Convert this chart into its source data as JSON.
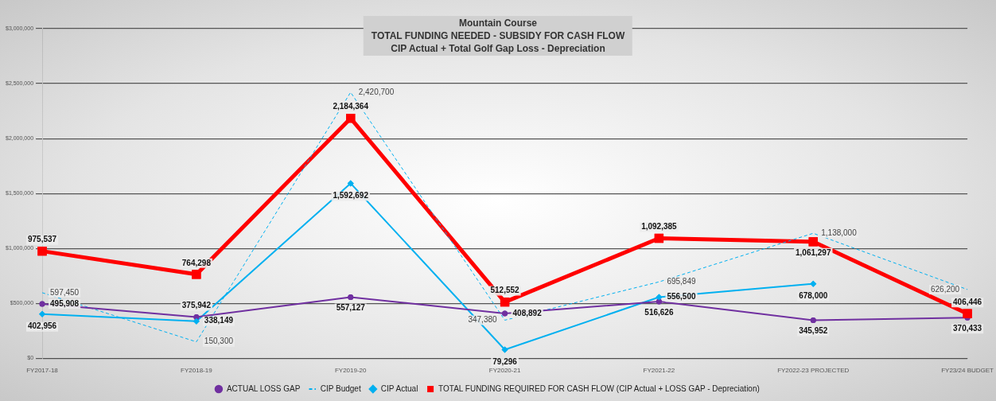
{
  "chart_data": {
    "type": "line",
    "title": "Mountain Course\nTOTAL FUNDING NEEDED - SUBSIDY FOR CASH FLOW\nCIP Actual + Total Golf Gap Loss - Depreciation",
    "categories": [
      "FY2017-18",
      "FY2018-19",
      "FY2019-20",
      "FY2020-21",
      "FY2021-22",
      "FY2022-23 PROJECTED",
      "FY23/24 BUDGET"
    ],
    "series": [
      {
        "name": "ACTUAL LOSS GAP",
        "color": "#7030a0",
        "marker": "circle",
        "line_style": "solid",
        "values": [
          495908,
          375942,
          557127,
          408892,
          516626,
          345952,
          370433
        ],
        "value_labels": [
          "495,908",
          "375,942",
          "557,127",
          "408,892",
          "516,626",
          "345,952",
          "370,433"
        ]
      },
      {
        "name": "CIP Budget",
        "color": "#00b0f0",
        "marker": "none",
        "line_style": "dashed",
        "values": [
          597450,
          150300,
          2420700,
          347380,
          695849,
          1138000,
          626200
        ],
        "value_labels": [
          "597,450",
          "150,300",
          "2,420,700",
          "347,380",
          "695,849",
          "1,138,000",
          "626,200"
        ]
      },
      {
        "name": "CIP Actual",
        "color": "#00b0f0",
        "marker": "diamond",
        "line_style": "solid",
        "values": [
          402956,
          338149,
          1592692,
          79296,
          556500,
          678000,
          null
        ],
        "value_labels": [
          "402,956",
          "338,149",
          "1,592,692",
          "79,296",
          "556,500",
          "678,000",
          null
        ]
      },
      {
        "name": "TOTAL FUNDING REQUIRED FOR CASH FLOW (CIP Actual + LOSS GAP - Depreciation)",
        "color": "#ff0000",
        "marker": "square",
        "line_style": "solid",
        "values": [
          975537,
          764298,
          2184364,
          512552,
          1092385,
          1061297,
          406446
        ],
        "value_labels": [
          "975,537",
          "764,298",
          "2,184,364",
          "512,552",
          "1,092,385",
          "1,061,297",
          "406,446"
        ]
      }
    ],
    "ylim": [
      0,
      3000000
    ],
    "yticks": [
      {
        "value": 0,
        "label": "$0"
      },
      {
        "value": 500000,
        "label": "$500,000"
      },
      {
        "value": 1000000,
        "label": "$1,000,000"
      },
      {
        "value": 1500000,
        "label": "$1,500,000"
      },
      {
        "value": 2000000,
        "label": "$2,000,000"
      },
      {
        "value": 2500000,
        "label": "$2,500,000"
      },
      {
        "value": 3000000,
        "label": "$3,000,000"
      }
    ],
    "grid": "y",
    "legend": "bottom",
    "data_labels": true
  }
}
